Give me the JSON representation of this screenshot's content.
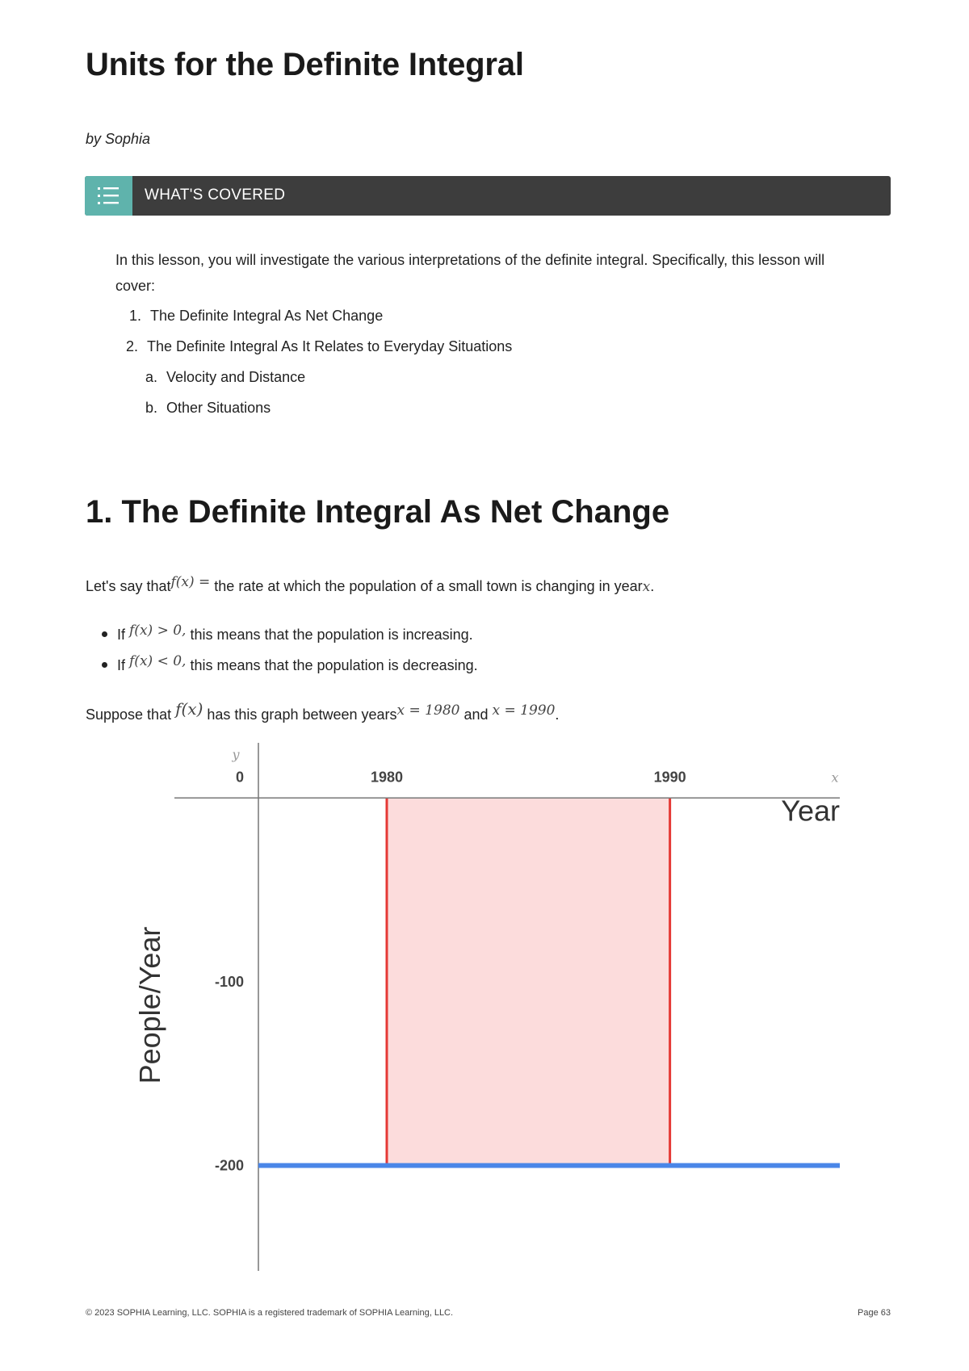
{
  "title": "Units for the Definite Integral",
  "author": "by Sophia",
  "covered": {
    "label": "WHAT'S COVERED",
    "icon": "list-icon",
    "intro": "In this lesson, you will investigate the various interpretations of the definite integral. Specifically, this lesson will cover:",
    "items": [
      {
        "marker": "1.",
        "text": "The Definite Integral As Net Change"
      },
      {
        "marker": "2.",
        "text": "The Definite Integral As It Relates to Everyday Situations"
      },
      {
        "marker": "a.",
        "text": "Velocity and Distance"
      },
      {
        "marker": "b.",
        "text": "Other Situations"
      }
    ]
  },
  "section1": {
    "heading": "1. The Definite Integral As Net Change",
    "para1": {
      "before": "Let's say that",
      "math": "f(x) =",
      "after": " the rate at which the population of a small town is changing in year",
      "var": "x",
      "end": "."
    },
    "bullets": [
      {
        "prefix": "If ",
        "math": "f(x) > 0,",
        "text": " this means that the population is increasing."
      },
      {
        "prefix": "If ",
        "math": "f(x) < 0,",
        "text": " this means that the population is decreasing."
      }
    ],
    "para2": {
      "before": "Suppose that ",
      "math1": "f(x)",
      "mid": " has this graph between years",
      "math2": "x = 1980",
      "and": " and ",
      "math3": "x = 1990",
      "end": "."
    }
  },
  "chart_data": {
    "type": "line",
    "xlabel": "Year",
    "ylabel": "People/Year",
    "x_var": "x",
    "y_var": "y",
    "x_ticks": [
      1980,
      1990
    ],
    "y_ticks": [
      0,
      -100,
      -200
    ],
    "xlim": [
      1972.5,
      1996
    ],
    "ylim": [
      -260,
      30
    ],
    "series": [
      {
        "x": [
          1973,
          1996
        ],
        "y": [
          -200,
          -200
        ],
        "color": "#4a86e8"
      }
    ],
    "shaded_region": {
      "x": [
        1980,
        1990
      ],
      "y": [
        -200,
        0
      ],
      "fill": "#fcdcdc",
      "edge": "#e53935"
    },
    "grid": false
  },
  "footer": {
    "copyright": "© 2023 SOPHIA Learning, LLC. SOPHIA is a registered trademark of SOPHIA Learning, LLC.",
    "page": "Page 63"
  }
}
